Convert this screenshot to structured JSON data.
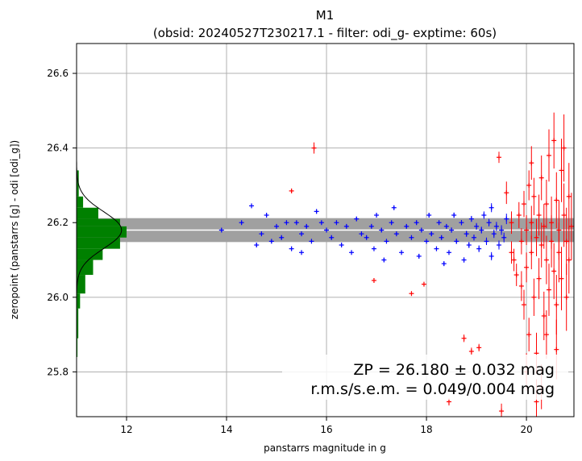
{
  "chart_data": {
    "type": "scatter",
    "title": "M1",
    "subtitle": "(obsid: 20240527T230217.1 - filter: odi_g- exptime: 60s)",
    "xlabel": "panstarrs magnitude in g",
    "ylabel": "zeropoint (panstarrs [g] - odi [odi_g])",
    "xlim": [
      11.0,
      20.95
    ],
    "ylim": [
      25.68,
      26.68
    ],
    "xticks": [
      12,
      14,
      16,
      18,
      20
    ],
    "yticks": [
      25.8,
      26.0,
      26.2,
      26.4,
      26.6
    ],
    "grid": true,
    "zeropoint": 26.18,
    "zp_band_halfwidth": 0.032,
    "annotation": {
      "line1": "ZP = 26.180 ± 0.032 mag",
      "line2": "r.m.s/s.e.m. = 0.049/0.004 mag"
    },
    "colors": {
      "used": "#0000ff",
      "rejected": "#ff0000",
      "histogram": "#008000",
      "band": "#a0a0a0",
      "zp_line": "#ffffff",
      "gaussian": "#000000",
      "grid": "#b0b0b0"
    },
    "histogram": {
      "bin_edges": [
        25.84,
        25.89,
        25.97,
        26.01,
        26.06,
        26.1,
        26.13,
        26.16,
        26.19,
        26.21,
        26.24,
        26.27,
        26.34
      ],
      "counts": [
        0.02,
        0.04,
        0.08,
        0.2,
        0.38,
        0.6,
        1.0,
        1.15,
        1.0,
        0.5,
        0.15,
        0.05
      ],
      "max_mag_extent": 12.0
    },
    "series": [
      {
        "name": "",
        "marker": "plus",
        "color": "#0000ff",
        "points": [
          [
            13.9,
            26.18,
            0.005
          ],
          [
            14.3,
            26.2,
            0.005
          ],
          [
            14.5,
            26.245,
            0.005
          ],
          [
            14.6,
            26.14,
            0.005
          ],
          [
            14.7,
            26.17,
            0.005
          ],
          [
            14.8,
            26.22,
            0.005
          ],
          [
            14.9,
            26.15,
            0.005
          ],
          [
            15.0,
            26.19,
            0.005
          ],
          [
            15.1,
            26.16,
            0.005
          ],
          [
            15.2,
            26.2,
            0.005
          ],
          [
            15.3,
            26.13,
            0.005
          ],
          [
            15.4,
            26.2,
            0.005
          ],
          [
            15.5,
            26.17,
            0.005
          ],
          [
            15.5,
            26.12,
            0.005
          ],
          [
            15.6,
            26.19,
            0.005
          ],
          [
            15.7,
            26.15,
            0.005
          ],
          [
            15.8,
            26.23,
            0.005
          ],
          [
            15.9,
            26.2,
            0.005
          ],
          [
            16.0,
            26.18,
            0.005
          ],
          [
            16.1,
            26.16,
            0.005
          ],
          [
            16.2,
            26.2,
            0.005
          ],
          [
            16.3,
            26.14,
            0.005
          ],
          [
            16.4,
            26.19,
            0.005
          ],
          [
            16.5,
            26.12,
            0.005
          ],
          [
            16.6,
            26.21,
            0.005
          ],
          [
            16.7,
            26.17,
            0.005
          ],
          [
            16.8,
            26.16,
            0.005
          ],
          [
            16.9,
            26.19,
            0.005
          ],
          [
            16.95,
            26.13,
            0.005
          ],
          [
            17.0,
            26.22,
            0.005
          ],
          [
            17.1,
            26.18,
            0.005
          ],
          [
            17.2,
            26.15,
            0.005
          ],
          [
            17.3,
            26.2,
            0.005
          ],
          [
            17.35,
            26.24,
            0.005
          ],
          [
            17.4,
            26.17,
            0.005
          ],
          [
            17.5,
            26.12,
            0.005
          ],
          [
            17.6,
            26.19,
            0.005
          ],
          [
            17.7,
            26.16,
            0.006
          ],
          [
            17.8,
            26.2,
            0.006
          ],
          [
            17.85,
            26.11,
            0.006
          ],
          [
            17.9,
            26.18,
            0.006
          ],
          [
            18.0,
            26.15,
            0.006
          ],
          [
            18.05,
            26.22,
            0.006
          ],
          [
            18.1,
            26.17,
            0.006
          ],
          [
            18.2,
            26.13,
            0.006
          ],
          [
            18.25,
            26.2,
            0.006
          ],
          [
            18.3,
            26.16,
            0.006
          ],
          [
            18.4,
            26.19,
            0.006
          ],
          [
            18.45,
            26.12,
            0.006
          ],
          [
            18.5,
            26.18,
            0.007
          ],
          [
            18.55,
            26.22,
            0.007
          ],
          [
            18.6,
            26.15,
            0.007
          ],
          [
            18.7,
            26.2,
            0.007
          ],
          [
            18.75,
            26.1,
            0.007
          ],
          [
            18.8,
            26.17,
            0.008
          ],
          [
            18.85,
            26.14,
            0.008
          ],
          [
            18.9,
            26.21,
            0.008
          ],
          [
            18.95,
            26.16,
            0.008
          ],
          [
            19.0,
            26.19,
            0.009
          ],
          [
            19.05,
            26.13,
            0.009
          ],
          [
            19.1,
            26.18,
            0.009
          ],
          [
            19.15,
            26.22,
            0.01
          ],
          [
            19.2,
            26.15,
            0.01
          ],
          [
            19.25,
            26.2,
            0.01
          ],
          [
            19.3,
            26.11,
            0.011
          ],
          [
            19.35,
            26.17,
            0.011
          ],
          [
            19.4,
            26.19,
            0.012
          ],
          [
            19.45,
            26.14,
            0.012
          ],
          [
            19.5,
            26.18,
            0.013
          ],
          [
            19.55,
            26.16,
            0.013
          ],
          [
            19.6,
            26.21,
            0.014
          ],
          [
            19.3,
            26.24,
            0.012
          ],
          [
            18.35,
            26.09,
            0.006
          ],
          [
            17.15,
            26.1,
            0.005
          ]
        ]
      },
      {
        "name": "",
        "marker": "plus",
        "color": "#ff0000",
        "points": [
          [
            15.3,
            26.285,
            0.005
          ],
          [
            15.75,
            26.4,
            0.015
          ],
          [
            16.95,
            26.045,
            0.005
          ],
          [
            17.7,
            26.01,
            0.005
          ],
          [
            17.95,
            26.035,
            0.005
          ],
          [
            18.45,
            25.72,
            0.01
          ],
          [
            18.75,
            25.89,
            0.01
          ],
          [
            18.9,
            25.855,
            0.01
          ],
          [
            19.05,
            25.865,
            0.01
          ],
          [
            19.45,
            26.375,
            0.015
          ],
          [
            19.5,
            25.695,
            0.02
          ],
          [
            19.6,
            26.28,
            0.03
          ],
          [
            19.7,
            26.2,
            0.03
          ],
          [
            19.75,
            26.1,
            0.03
          ],
          [
            19.8,
            26.06,
            0.03
          ],
          [
            19.85,
            26.22,
            0.035
          ],
          [
            19.9,
            26.15,
            0.035
          ],
          [
            19.95,
            26.25,
            0.035
          ],
          [
            19.95,
            25.98,
            0.04
          ],
          [
            20.0,
            26.18,
            0.04
          ],
          [
            20.0,
            26.08,
            0.04
          ],
          [
            20.05,
            26.3,
            0.04
          ],
          [
            20.05,
            25.9,
            0.045
          ],
          [
            20.1,
            26.2,
            0.045
          ],
          [
            20.1,
            26.12,
            0.045
          ],
          [
            20.15,
            26.0,
            0.05
          ],
          [
            20.15,
            26.27,
            0.05
          ],
          [
            20.2,
            26.16,
            0.05
          ],
          [
            20.2,
            25.85,
            0.055
          ],
          [
            20.25,
            26.22,
            0.055
          ],
          [
            20.25,
            26.05,
            0.055
          ],
          [
            20.3,
            26.32,
            0.06
          ],
          [
            20.3,
            26.14,
            0.06
          ],
          [
            20.35,
            26.19,
            0.06
          ],
          [
            20.35,
            25.95,
            0.065
          ],
          [
            20.4,
            26.25,
            0.065
          ],
          [
            20.4,
            26.1,
            0.065
          ],
          [
            20.45,
            26.38,
            0.07
          ],
          [
            20.45,
            26.02,
            0.07
          ],
          [
            20.5,
            26.2,
            0.07
          ],
          [
            20.5,
            26.15,
            0.07
          ],
          [
            20.55,
            26.42,
            0.075
          ],
          [
            20.55,
            26.07,
            0.075
          ],
          [
            20.6,
            26.26,
            0.075
          ],
          [
            20.6,
            25.98,
            0.08
          ],
          [
            20.65,
            26.18,
            0.08
          ],
          [
            20.65,
            26.12,
            0.08
          ],
          [
            20.7,
            26.34,
            0.085
          ],
          [
            20.7,
            26.05,
            0.085
          ],
          [
            20.75,
            26.22,
            0.085
          ],
          [
            20.75,
            26.4,
            0.09
          ],
          [
            20.8,
            26.15,
            0.09
          ],
          [
            20.8,
            26.0,
            0.09
          ],
          [
            20.85,
            26.27,
            0.09
          ],
          [
            20.85,
            26.1,
            0.09
          ],
          [
            20.9,
            26.19,
            0.09
          ],
          [
            20.2,
            25.72,
            0.06
          ],
          [
            20.0,
            25.8,
            0.05
          ],
          [
            19.9,
            26.03,
            0.04
          ],
          [
            20.4,
            25.9,
            0.065
          ],
          [
            20.6,
            25.86,
            0.08
          ],
          [
            20.3,
            25.76,
            0.06
          ],
          [
            19.7,
            26.12,
            0.03
          ],
          [
            20.1,
            26.36,
            0.045
          ]
        ]
      }
    ]
  }
}
